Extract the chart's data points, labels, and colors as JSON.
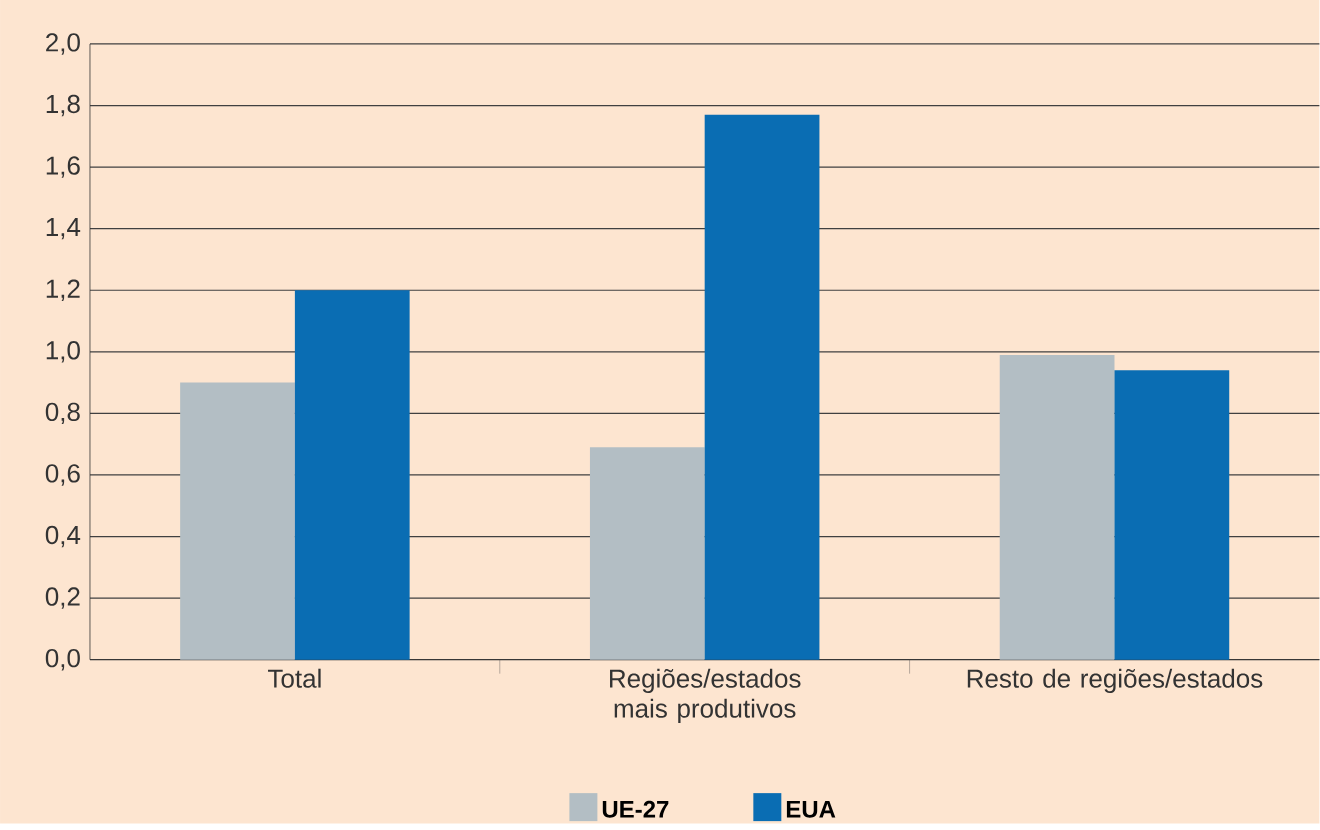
{
  "chart_data": {
    "type": "bar",
    "categories": [
      "Total",
      "Regiões/estados mais produtivos",
      "Resto de regiões/estados"
    ],
    "series": [
      {
        "name": "UE-27",
        "color": "#b3bec4",
        "values": [
          0.9,
          0.69,
          0.99
        ]
      },
      {
        "name": "EUA",
        "color": "#0a6db3",
        "values": [
          1.2,
          1.77,
          0.94
        ]
      }
    ],
    "ylim": [
      0,
      2.0
    ],
    "yticks": [
      {
        "value": 0,
        "label": "0,0"
      },
      {
        "value": 0.2,
        "label": "0,2"
      },
      {
        "value": 0.4,
        "label": "0,4"
      },
      {
        "value": 0.6,
        "label": "0,6"
      },
      {
        "value": 0.8,
        "label": "0,8"
      },
      {
        "value": 1.0,
        "label": "1,0"
      },
      {
        "value": 1.2,
        "label": "1,2"
      },
      {
        "value": 1.4,
        "label": "1,4"
      },
      {
        "value": 1.6,
        "label": "1,6"
      },
      {
        "value": 1.8,
        "label": "1,8"
      },
      {
        "value": 2.0,
        "label": "2,0"
      }
    ],
    "grid": "y",
    "legend": "bottom"
  }
}
